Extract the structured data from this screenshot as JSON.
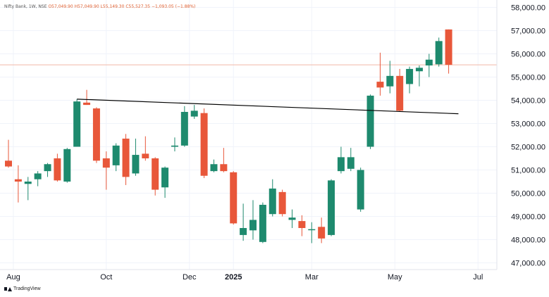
{
  "legend": {
    "symbol": "Nifty Bank, 1W, NSE",
    "ohlc": "O57,049.90  H57,049.90  L55,149.30  C55,527.35  −1,093.05 (−1.88%)"
  },
  "brand": "TradingView",
  "colors": {
    "up": "#1e8a6e",
    "down": "#e8573a",
    "trendline": "#000000",
    "priceline": "#f0b9a8",
    "grid": "#f0f3fa",
    "axis_text": "#131722"
  },
  "chart_data": {
    "type": "candlestick",
    "title": "Nifty Bank, 1W, NSE",
    "ylim": [
      46700,
      58200
    ],
    "yticks": [
      47000,
      48000,
      49000,
      50000,
      51000,
      52000,
      53000,
      54000,
      55000,
      56000,
      57000,
      58000
    ],
    "ytick_labels": [
      "47,000.00",
      "48,000.00",
      "49,000.00",
      "50,000.00",
      "51,000.00",
      "52,000.00",
      "53,000.00",
      "54,000.00",
      "55,000.00",
      "56,000.00",
      "57,000.00",
      "58,000.00"
    ],
    "xticks": [
      {
        "label": "Aug",
        "week": 0.5
      },
      {
        "label": "Oct",
        "week": 10
      },
      {
        "label": "Dec",
        "week": 18.5
      },
      {
        "label": "2025",
        "week": 23,
        "bold": true
      },
      {
        "label": "Mar",
        "week": 31
      },
      {
        "label": "May",
        "week": 39.5
      },
      {
        "label": "Jul",
        "week": 48
      }
    ],
    "current_price": 55527.35,
    "trendline": {
      "start": {
        "week": 7,
        "value": 54050
      },
      "end": {
        "week": 46,
        "value": 53420
      }
    },
    "candles": [
      {
        "w": 0,
        "o": 51400,
        "h": 52300,
        "l": 51100,
        "c": 51150
      },
      {
        "w": 1,
        "o": 50600,
        "h": 51200,
        "l": 49600,
        "c": 50500
      },
      {
        "w": 2,
        "o": 50400,
        "h": 50700,
        "l": 49700,
        "c": 50500
      },
      {
        "w": 3,
        "o": 50600,
        "h": 50950,
        "l": 50300,
        "c": 50850
      },
      {
        "w": 4,
        "o": 50950,
        "h": 51300,
        "l": 50700,
        "c": 51250
      },
      {
        "w": 5,
        "o": 51500,
        "h": 51700,
        "l": 50500,
        "c": 50550
      },
      {
        "w": 6,
        "o": 50500,
        "h": 51950,
        "l": 50450,
        "c": 51900
      },
      {
        "w": 7,
        "o": 52000,
        "h": 54050,
        "l": 52000,
        "c": 53950
      },
      {
        "w": 8,
        "o": 53900,
        "h": 54450,
        "l": 53800,
        "c": 53800
      },
      {
        "w": 9,
        "o": 53650,
        "h": 53700,
        "l": 51300,
        "c": 51400
      },
      {
        "w": 10,
        "o": 51500,
        "h": 51800,
        "l": 50150,
        "c": 51100
      },
      {
        "w": 11,
        "o": 51200,
        "h": 52150,
        "l": 50950,
        "c": 52050
      },
      {
        "w": 12,
        "o": 52350,
        "h": 52550,
        "l": 50350,
        "c": 50700
      },
      {
        "w": 13,
        "o": 50850,
        "h": 52350,
        "l": 50750,
        "c": 51650
      },
      {
        "w": 14,
        "o": 51700,
        "h": 52450,
        "l": 51400,
        "c": 51500
      },
      {
        "w": 15,
        "o": 51500,
        "h": 51550,
        "l": 49900,
        "c": 50150
      },
      {
        "w": 16,
        "o": 50250,
        "h": 51150,
        "l": 49800,
        "c": 51100
      },
      {
        "w": 17,
        "o": 52000,
        "h": 52400,
        "l": 51800,
        "c": 52050
      },
      {
        "w": 18,
        "o": 52050,
        "h": 53750,
        "l": 52000,
        "c": 53500
      },
      {
        "w": 19,
        "o": 53300,
        "h": 53800,
        "l": 53200,
        "c": 53550
      },
      {
        "w": 20,
        "o": 53450,
        "h": 53650,
        "l": 50650,
        "c": 50750
      },
      {
        "w": 21,
        "o": 50950,
        "h": 51450,
        "l": 50900,
        "c": 51250
      },
      {
        "w": 22,
        "o": 51250,
        "h": 51950,
        "l": 50900,
        "c": 50950
      },
      {
        "w": 23,
        "o": 50900,
        "h": 50950,
        "l": 48650,
        "c": 48700
      },
      {
        "w": 24,
        "o": 48200,
        "h": 49550,
        "l": 47950,
        "c": 48500
      },
      {
        "w": 25,
        "o": 48400,
        "h": 49700,
        "l": 48000,
        "c": 48850
      },
      {
        "w": 26,
        "o": 47900,
        "h": 49600,
        "l": 47850,
        "c": 49500
      },
      {
        "w": 27,
        "o": 49100,
        "h": 50600,
        "l": 49000,
        "c": 50200
      },
      {
        "w": 28,
        "o": 50050,
        "h": 50150,
        "l": 49000,
        "c": 49100
      },
      {
        "w": 29,
        "o": 48850,
        "h": 49300,
        "l": 48500,
        "c": 48950
      },
      {
        "w": 30,
        "o": 48800,
        "h": 49050,
        "l": 48150,
        "c": 48500
      },
      {
        "w": 31,
        "o": 48450,
        "h": 48750,
        "l": 47850,
        "c": 48450
      },
      {
        "w": 32,
        "o": 48550,
        "h": 48950,
        "l": 47850,
        "c": 48050
      },
      {
        "w": 33,
        "o": 48200,
        "h": 50600,
        "l": 48150,
        "c": 50550
      },
      {
        "w": 34,
        "o": 50950,
        "h": 52000,
        "l": 50850,
        "c": 51550
      },
      {
        "w": 35,
        "o": 51050,
        "h": 51950,
        "l": 50950,
        "c": 51550
      },
      {
        "w": 36,
        "o": 49300,
        "h": 51100,
        "l": 49200,
        "c": 51000
      },
      {
        "w": 37,
        "o": 52000,
        "h": 54250,
        "l": 51900,
        "c": 54200
      },
      {
        "w": 38,
        "o": 54800,
        "h": 56050,
        "l": 54200,
        "c": 54550
      },
      {
        "w": 39,
        "o": 54600,
        "h": 55700,
        "l": 54300,
        "c": 55050
      },
      {
        "w": 40,
        "o": 55050,
        "h": 55350,
        "l": 53500,
        "c": 53550
      },
      {
        "w": 41,
        "o": 54700,
        "h": 55450,
        "l": 54300,
        "c": 55350
      },
      {
        "w": 42,
        "o": 55250,
        "h": 55500,
        "l": 54600,
        "c": 55400
      },
      {
        "w": 43,
        "o": 55500,
        "h": 56000,
        "l": 55000,
        "c": 55750
      },
      {
        "w": 44,
        "o": 55550,
        "h": 56700,
        "l": 55450,
        "c": 56550
      },
      {
        "w": 45,
        "o": 57049.9,
        "h": 57049.9,
        "l": 55149.3,
        "c": 55527.35
      }
    ]
  }
}
